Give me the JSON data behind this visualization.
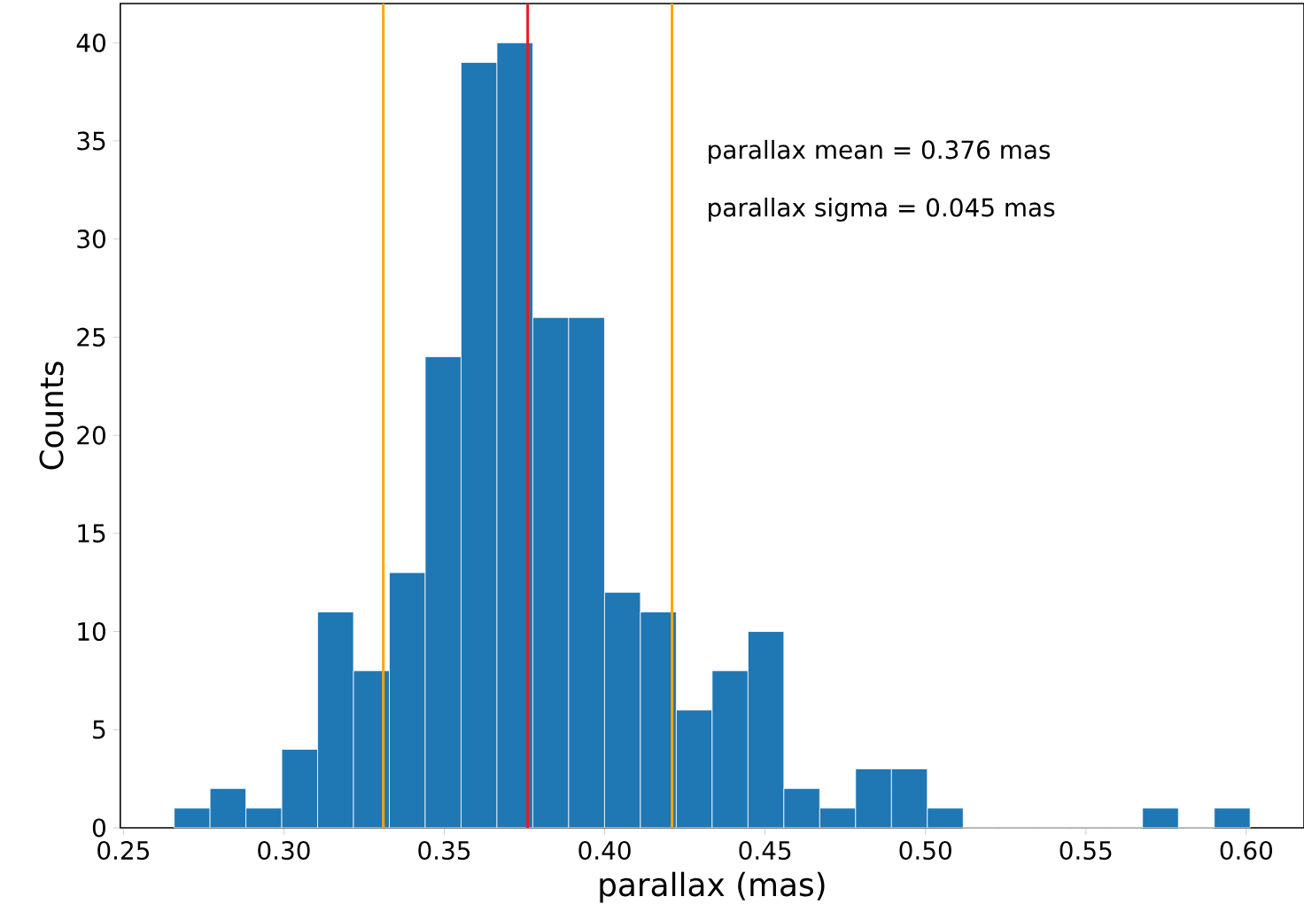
{
  "chart_data": {
    "type": "histogram",
    "bins": [
      0.2658,
      0.27698,
      0.28816,
      0.29934,
      0.31052,
      0.3217,
      0.33288,
      0.34406,
      0.35524,
      0.36642,
      0.3776,
      0.38878,
      0.39996,
      0.41114,
      0.42232,
      0.4335,
      0.44468,
      0.45586,
      0.46704,
      0.47822,
      0.4894,
      0.50058,
      0.51176,
      0.52294,
      0.53412,
      0.5453,
      0.55648,
      0.56766,
      0.57884,
      0.59002,
      0.6012
    ],
    "values": [
      1,
      2,
      1,
      4,
      11,
      8,
      13,
      24,
      39,
      40,
      26,
      26,
      12,
      11,
      6,
      8,
      10,
      2,
      1,
      3,
      3,
      1,
      0,
      0,
      0,
      0,
      0,
      1,
      0,
      1
    ],
    "color": "#1f77b4",
    "xlabel": "parallax (mas)",
    "ylabel": "Counts",
    "xlim": [
      0.249,
      0.618
    ],
    "ylim": [
      0,
      42
    ],
    "xticks": [
      {
        "value": 0.25,
        "label": "0.25"
      },
      {
        "value": 0.3,
        "label": "0.30"
      },
      {
        "value": 0.35,
        "label": "0.35"
      },
      {
        "value": 0.4,
        "label": "0.40"
      },
      {
        "value": 0.45,
        "label": "0.45"
      },
      {
        "value": 0.5,
        "label": "0.50"
      },
      {
        "value": 0.55,
        "label": "0.55"
      },
      {
        "value": 0.6,
        "label": "0.60"
      }
    ],
    "yticks": [
      0,
      5,
      10,
      15,
      20,
      25,
      30,
      35,
      40
    ],
    "ref_lines": [
      {
        "axis": "x",
        "value": 0.331,
        "color": "#ffa500"
      },
      {
        "axis": "x",
        "value": 0.376,
        "color": "#e8191f"
      },
      {
        "axis": "x",
        "value": 0.421,
        "color": "#ffa500"
      }
    ],
    "annotations": [
      "parallax mean = 0.376 mas",
      "parallax sigma = 0.045 mas"
    ]
  }
}
